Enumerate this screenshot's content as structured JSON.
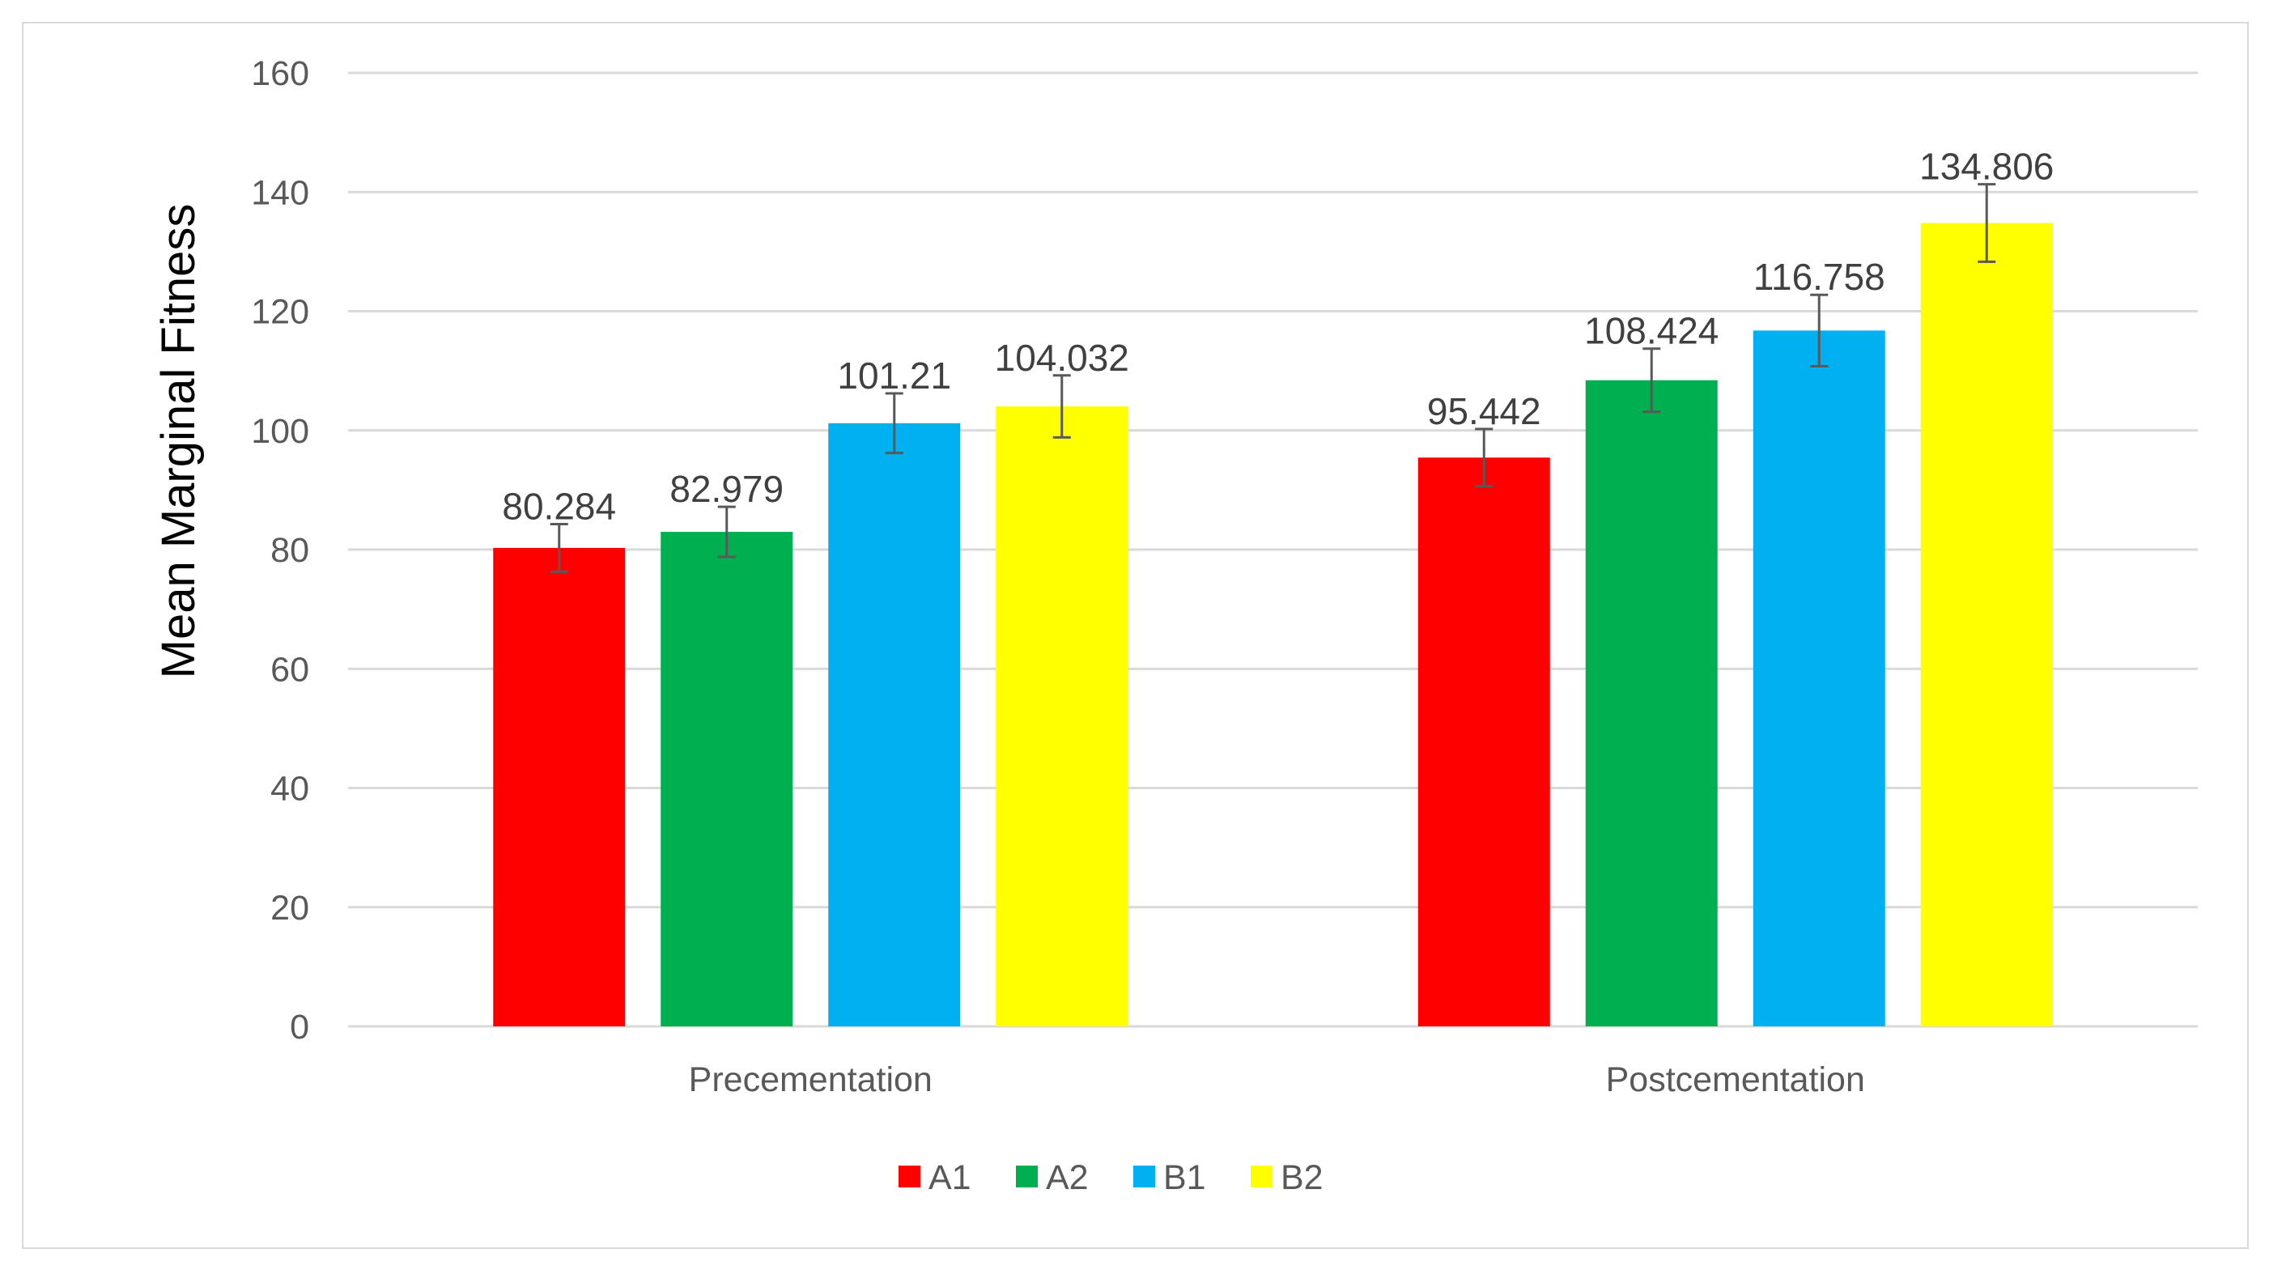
{
  "chart_data": {
    "type": "bar",
    "title": "",
    "xlabel": "",
    "ylabel": "Mean Marginal Fitness",
    "ylim": [
      0,
      160
    ],
    "yticks": [
      0,
      20,
      40,
      60,
      80,
      100,
      120,
      140,
      160
    ],
    "ytick_labels": [
      "0",
      "20",
      "40",
      "60",
      "80",
      "100",
      "120",
      "140",
      "160"
    ],
    "grid": true,
    "legend_position": "bottom",
    "categories": [
      "Precementation",
      "Postcementation"
    ],
    "series": [
      {
        "name": "A1",
        "color": "#ff0000",
        "values": [
          80.284,
          95.442
        ],
        "value_labels": [
          "80.284",
          "95.442"
        ],
        "error": [
          4.0,
          4.8
        ]
      },
      {
        "name": "A2",
        "color": "#00b050",
        "values": [
          82.979,
          108.424
        ],
        "value_labels": [
          "82.979",
          "108.424"
        ],
        "error": [
          4.2,
          5.3
        ]
      },
      {
        "name": "B1",
        "color": "#00b0f0",
        "values": [
          101.21,
          116.758
        ],
        "value_labels": [
          "101.21",
          "116.758"
        ],
        "error": [
          5.0,
          6.0
        ]
      },
      {
        "name": "B2",
        "color": "#ffff00",
        "values": [
          104.032,
          134.806
        ],
        "value_labels": [
          "104.032",
          "134.806"
        ],
        "error": [
          5.2,
          6.5
        ]
      }
    ],
    "gridline_color": "#d9d9d9",
    "error_bar_color": "#595959"
  }
}
